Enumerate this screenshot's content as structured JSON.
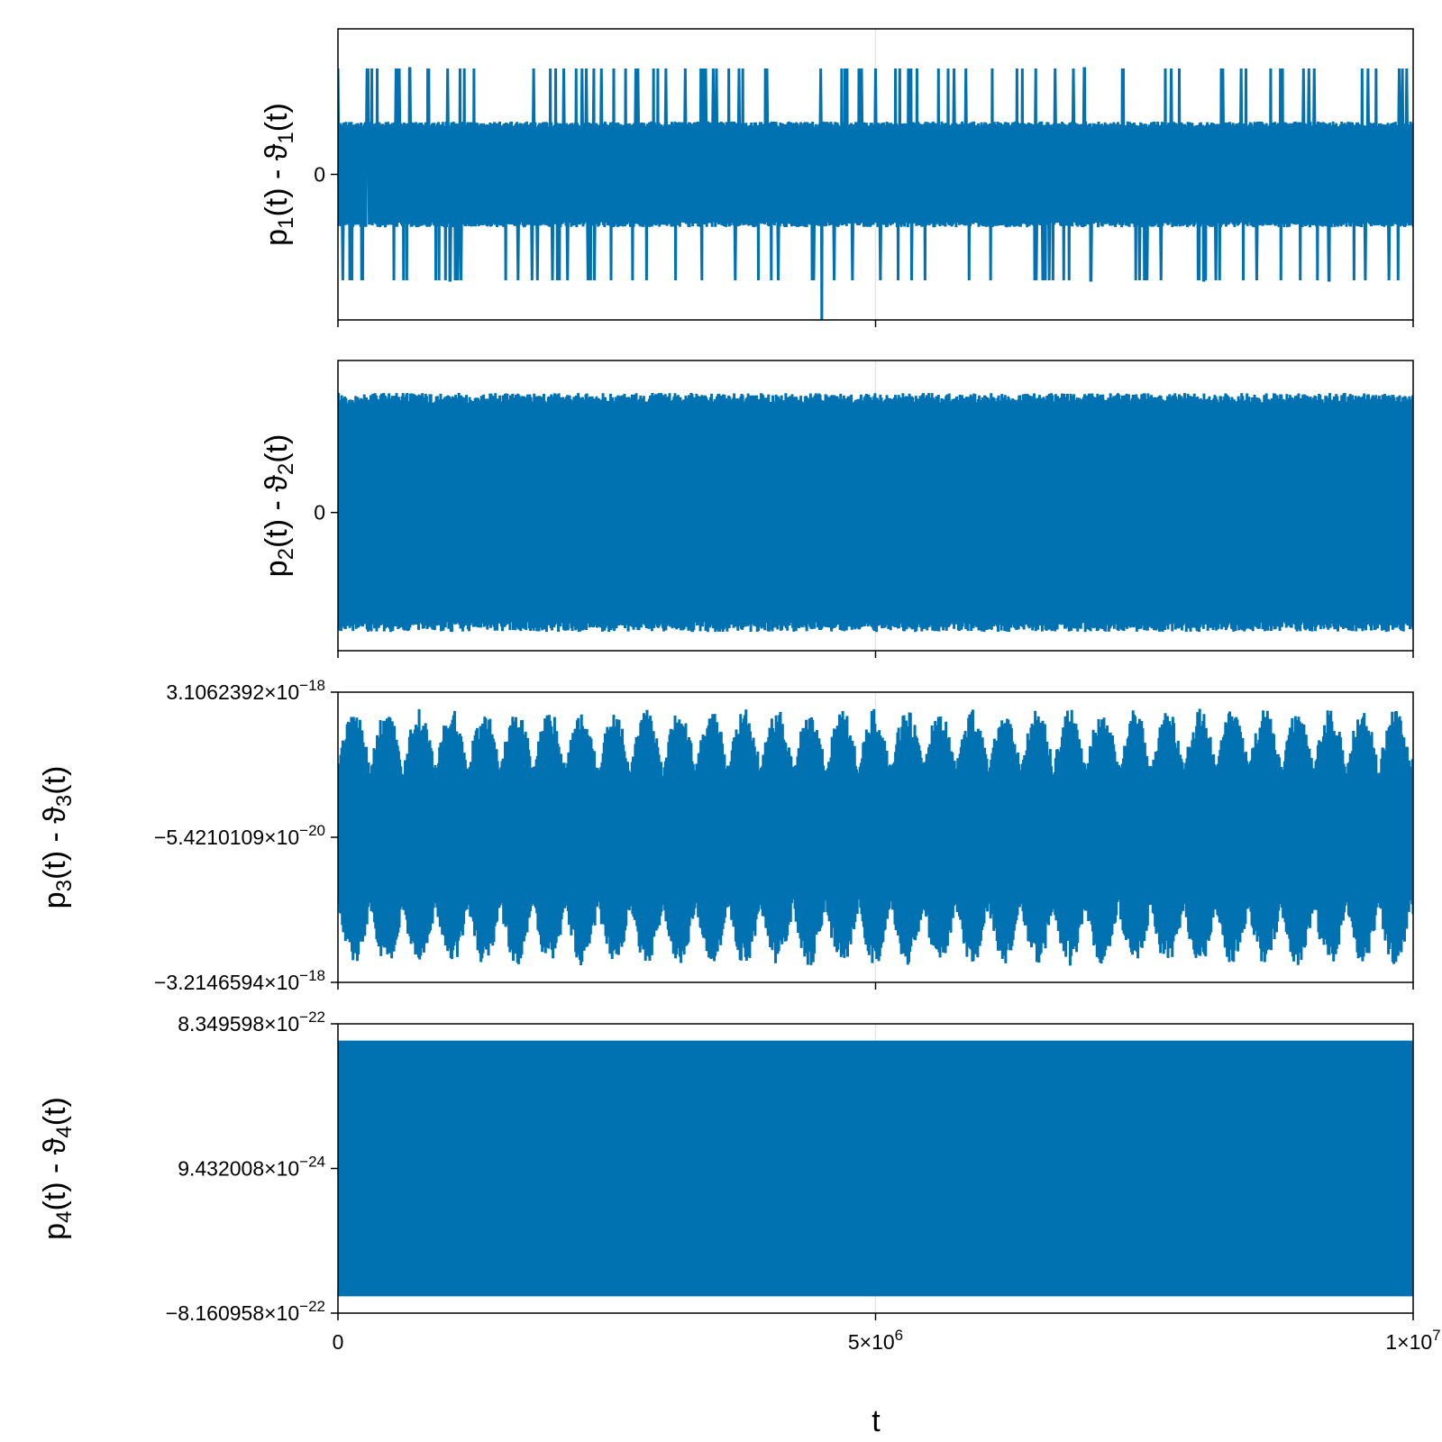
{
  "colors": {
    "series": "#0072b2",
    "frame": "#000000",
    "grid": "#e6e6e6"
  },
  "x_axis": {
    "label": "t",
    "range": [
      0,
      10000000
    ],
    "ticks": [
      {
        "value": 0,
        "label": "0",
        "mant": "0",
        "exp": ""
      },
      {
        "value": 5000000,
        "label": "5×10^6",
        "mant": "5×10",
        "exp": "6"
      },
      {
        "value": 10000000,
        "label": "1×10^7",
        "mant": "1×10",
        "exp": "7"
      }
    ]
  },
  "chart_data": [
    {
      "type": "line",
      "ylabel": "p₁(t) - ϑ₁(t)",
      "ylabel_base": "p",
      "ylabel_sub": "1",
      "ylabel_rest": "(t) - ϑ",
      "ylabel_sub2": "1",
      "ylabel_end": "(t)",
      "ylim": [
        -1.1,
        1.1
      ],
      "yticks": [
        {
          "value": 0,
          "label": "0",
          "mant": "0",
          "exp": ""
        }
      ],
      "pattern": "switching",
      "band": 0.4,
      "spike_up": 0.8,
      "spike_down": -0.8,
      "min_value": -1.2,
      "min_at": 4500000,
      "series": [
        {
          "x_range": [
            0,
            10000000
          ],
          "approx_points": 2000
        }
      ]
    },
    {
      "type": "line",
      "ylabel": "p₂(t) - ϑ₂(t)",
      "ylabel_base": "p",
      "ylabel_sub": "2",
      "ylabel_rest": "(t) - ϑ",
      "ylabel_sub2": "2",
      "ylabel_end": "(t)",
      "ylim": [
        -1.0,
        1.1
      ],
      "yticks": [
        {
          "value": 0,
          "label": "0",
          "mant": "0",
          "exp": ""
        }
      ],
      "pattern": "dense",
      "upper_envelope": 0.93,
      "lower_envelope": -0.93,
      "series": [
        {
          "x_range": [
            0,
            10000000
          ],
          "approx_points": 2000
        }
      ]
    },
    {
      "type": "line",
      "ylabel": "p₃(t) - ϑ₃(t)",
      "ylabel_base": "p",
      "ylabel_sub": "3",
      "ylabel_rest": "(t) - ϑ",
      "ylabel_sub2": "3",
      "ylabel_end": "(t)",
      "ylim": [
        -3.2146594e-18,
        3.1062392e-18
      ],
      "yticks": [
        {
          "value": 3.1062392e-18,
          "label": "3.1062392×10^−18",
          "mant": "3.1062392×10",
          "exp": "−18"
        },
        {
          "value": -5.4210109e-20,
          "label": "−5.4210109×10^−20",
          "mant": "−5.4210109×10",
          "exp": "−20"
        },
        {
          "value": -3.2146594e-18,
          "label": "−3.2146594×10^−18",
          "mant": "−3.2146594×10",
          "exp": "−18"
        }
      ],
      "pattern": "oscillating",
      "center": -5.4210109e-20,
      "amplitude": 2.8e-18,
      "period": 55000,
      "series": [
        {
          "x_range": [
            0,
            10000000
          ],
          "approx_points": 2000
        }
      ]
    },
    {
      "type": "line",
      "ylabel": "p₄(t) - ϑ₄(t)",
      "ylabel_base": "p",
      "ylabel_sub": "4",
      "ylabel_rest": "(t) - ϑ",
      "ylabel_sub2": "4",
      "ylabel_end": "(t)",
      "ylim": [
        -8.160958e-22,
        8.349598e-22
      ],
      "yticks": [
        {
          "value": 8.349598e-22,
          "label": "8.349598×10^−22",
          "mant": "8.349598×10",
          "exp": "−22"
        },
        {
          "value": 9.432008e-24,
          "label": "9.432008×10^−24",
          "mant": "9.432008×10",
          "exp": "−24"
        },
        {
          "value": -8.160958e-22,
          "label": "−8.160958×10^−22",
          "mant": "−8.160958×10",
          "exp": "−22"
        }
      ],
      "pattern": "periodic",
      "center": 9.432008e-24,
      "amplitude": 7.3e-22,
      "period": 60000,
      "series": [
        {
          "x_range": [
            0,
            10000000
          ],
          "approx_points": 2000
        }
      ]
    }
  ]
}
